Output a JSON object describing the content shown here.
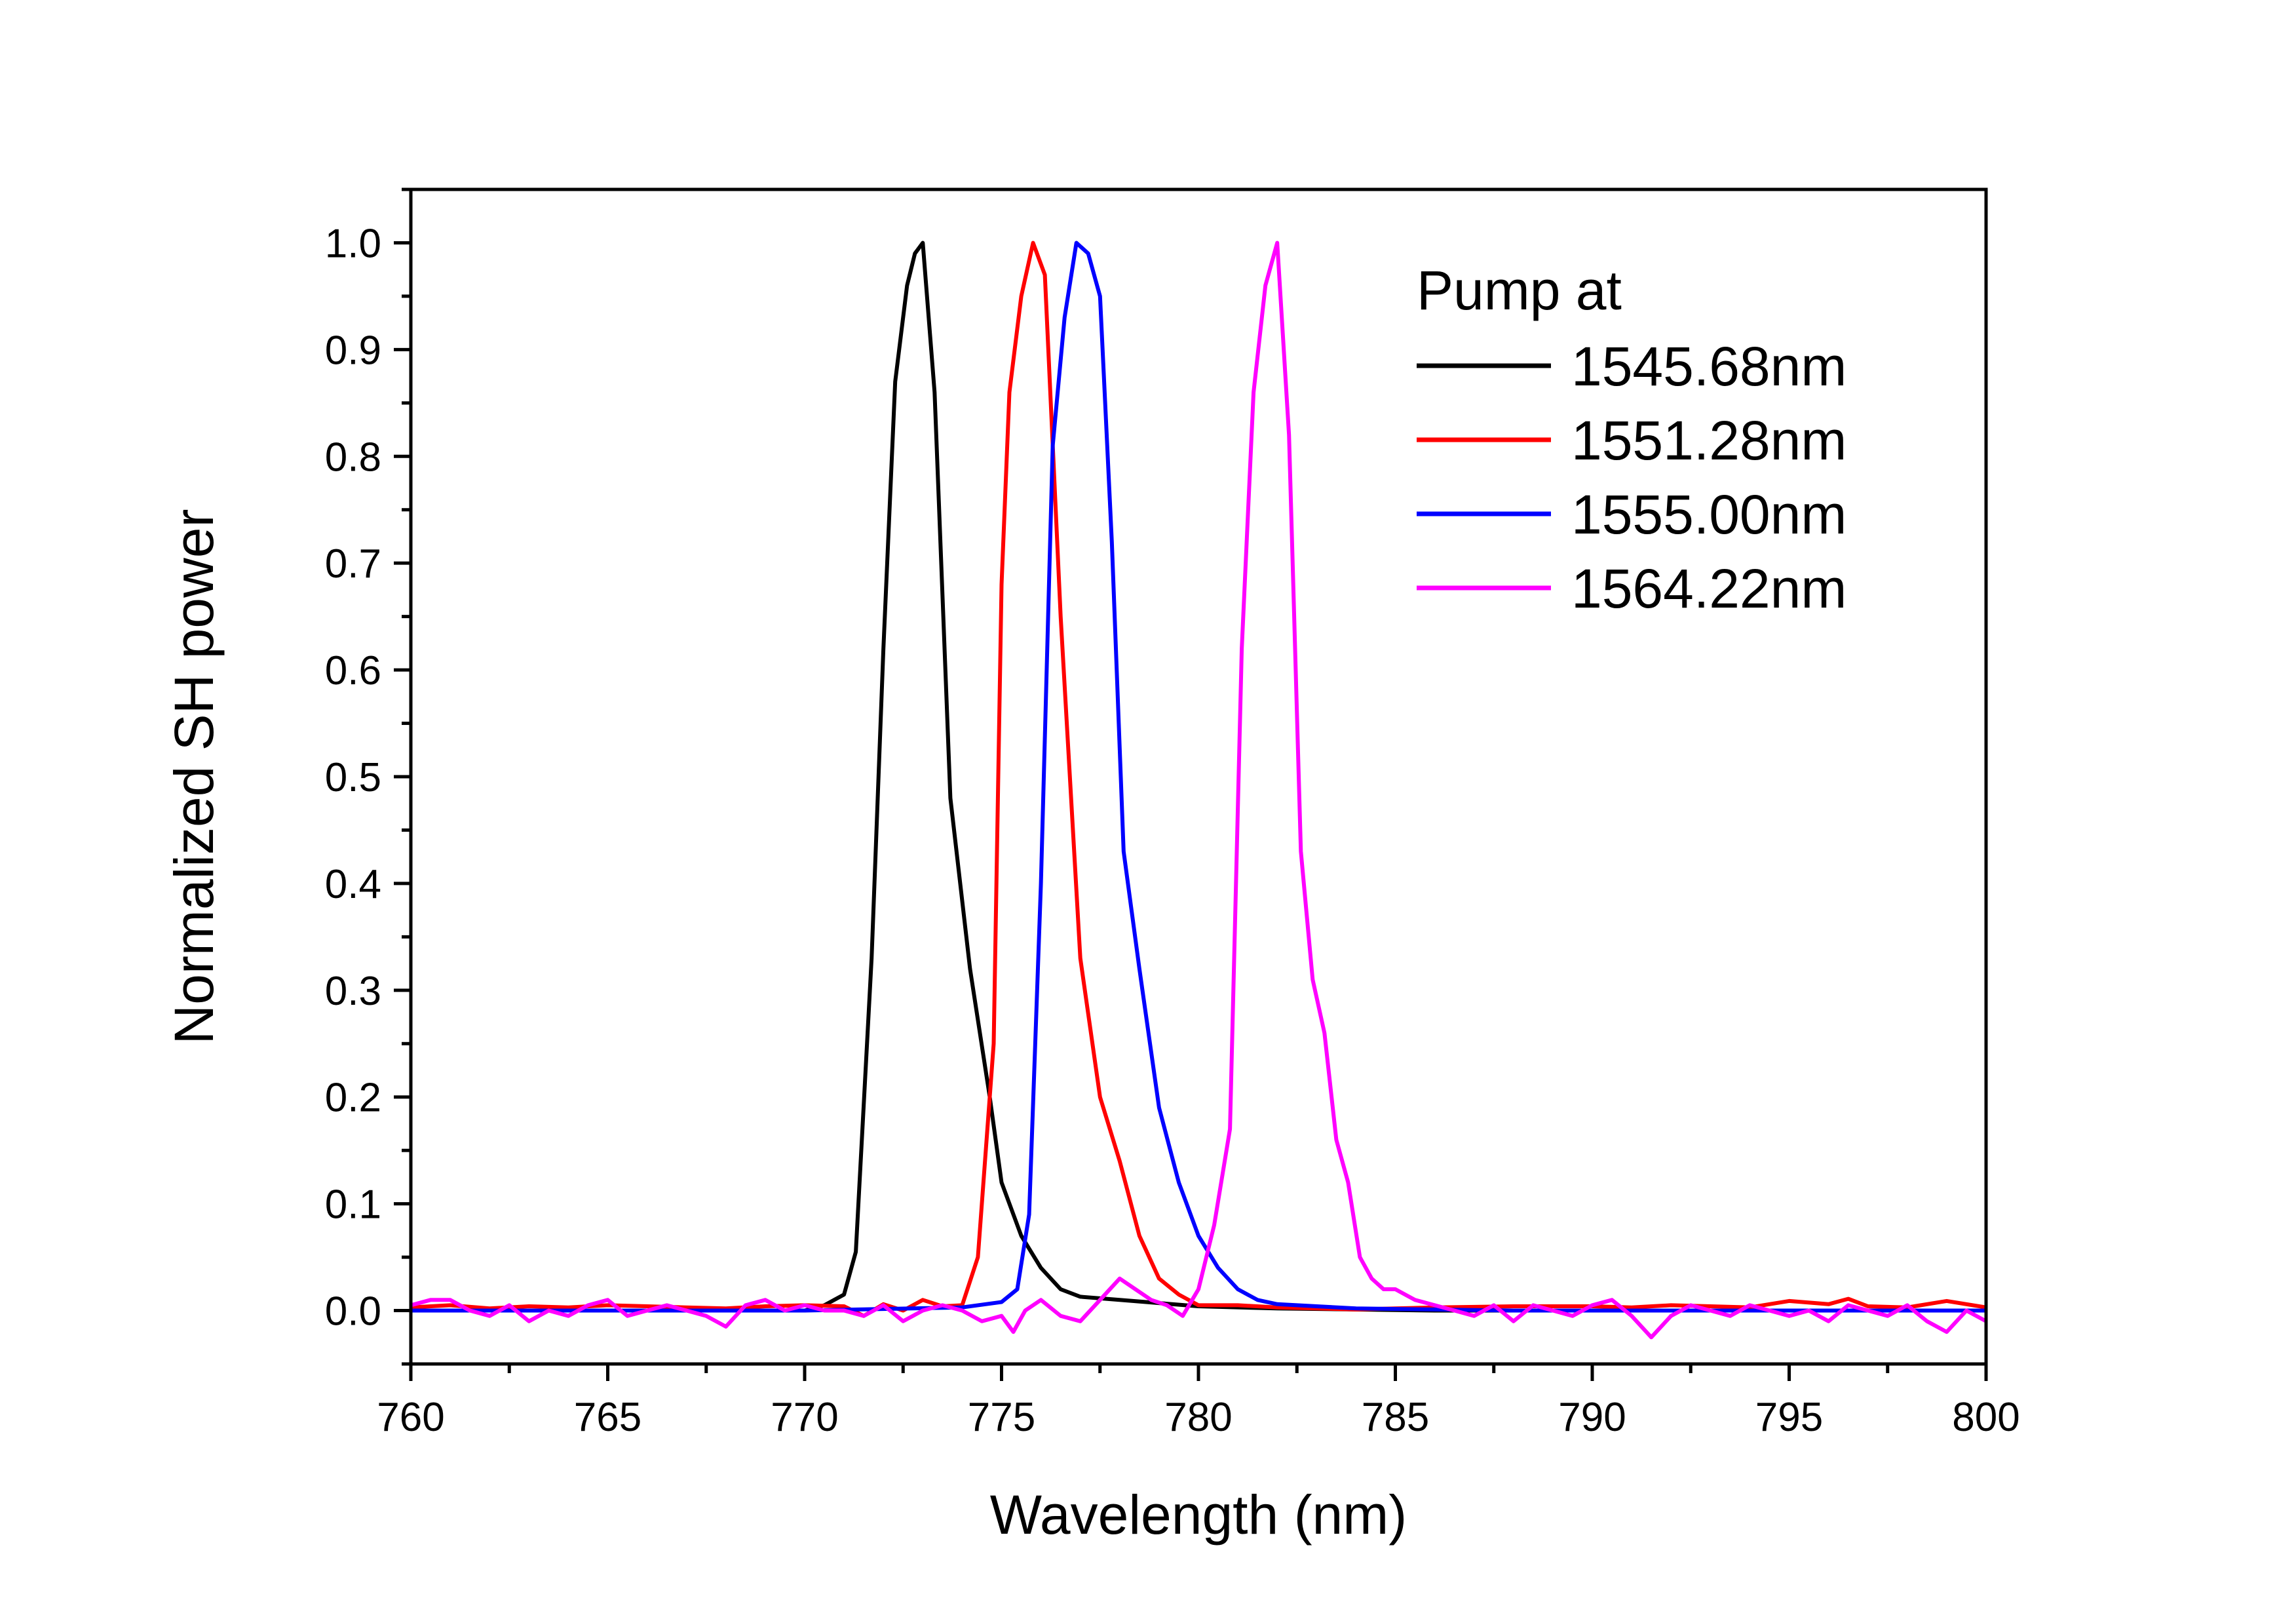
{
  "chart_data": {
    "type": "line",
    "title": "",
    "xlabel": "Wavelength (nm)",
    "ylabel": "Normalized SH power",
    "xlim": [
      760,
      800
    ],
    "ylim": [
      -0.05,
      1.05
    ],
    "xticks": [
      "760",
      "765",
      "770",
      "775",
      "780",
      "785",
      "790",
      "795",
      "800"
    ],
    "yticks": [
      "0.0",
      "0.1",
      "0.2",
      "0.3",
      "0.4",
      "0.5",
      "0.6",
      "0.7",
      "0.8",
      "0.9",
      "1.0"
    ],
    "grid": false,
    "legend": {
      "title": "Pump at",
      "placement": "top-right"
    },
    "series": [
      {
        "name": "1545.68nm",
        "color": "#000000",
        "x": [
          760,
          762,
          764,
          766,
          768,
          770,
          770.5,
          771,
          771.3,
          771.7,
          772,
          772.3,
          772.6,
          772.8,
          773,
          773.3,
          773.7,
          774.2,
          774.7,
          775,
          775.5,
          776,
          776.5,
          777,
          778,
          779,
          780,
          782,
          784,
          786,
          788,
          790,
          792,
          794,
          796,
          798,
          800
        ],
        "y": [
          0.0,
          0.0,
          0.0,
          0.0,
          0.0,
          0.0,
          0.005,
          0.015,
          0.055,
          0.33,
          0.62,
          0.87,
          0.96,
          0.99,
          1.0,
          0.86,
          0.48,
          0.32,
          0.2,
          0.12,
          0.07,
          0.04,
          0.02,
          0.013,
          0.01,
          0.007,
          0.004,
          0.002,
          0.001,
          0.0,
          0.0,
          0.0,
          0.0,
          0.0,
          0.0,
          0.0,
          0.0
        ]
      },
      {
        "name": "1551.28nm",
        "color": "#ff0000",
        "x": [
          760,
          761,
          762,
          763,
          764,
          765,
          766,
          767,
          768,
          769,
          770,
          771,
          771.5,
          772,
          772.5,
          773,
          773.5,
          774,
          774.4,
          774.8,
          775,
          775.2,
          775.5,
          775.8,
          776.1,
          776.5,
          777,
          777.5,
          778,
          778.5,
          779,
          779.5,
          780,
          781,
          782,
          783,
          784,
          785,
          786,
          788,
          790,
          791,
          792,
          793,
          794,
          795,
          796,
          796.5,
          797,
          798,
          799,
          800
        ],
        "y": [
          0.003,
          0.005,
          0.002,
          0.004,
          0.003,
          0.005,
          0.004,
          0.003,
          0.002,
          0.004,
          0.005,
          0.004,
          -0.005,
          0.006,
          0.0,
          0.01,
          0.004,
          0.005,
          0.05,
          0.25,
          0.68,
          0.86,
          0.95,
          1.0,
          0.97,
          0.65,
          0.33,
          0.2,
          0.14,
          0.07,
          0.03,
          0.015,
          0.005,
          0.005,
          0.003,
          0.002,
          0.001,
          0.002,
          0.003,
          0.004,
          0.004,
          0.003,
          0.005,
          0.004,
          0.003,
          0.009,
          0.006,
          0.011,
          0.004,
          0.003,
          0.009,
          0.003
        ]
      },
      {
        "name": "1555.00nm",
        "color": "#0000ff",
        "x": [
          760,
          765,
          770,
          774,
          775,
          775.4,
          775.7,
          776,
          776.3,
          776.6,
          776.9,
          777.2,
          777.5,
          777.8,
          778.1,
          778.5,
          779,
          779.5,
          780,
          780.5,
          781,
          781.5,
          782,
          783,
          784,
          786,
          788,
          790,
          792,
          794,
          796,
          798,
          800
        ],
        "y": [
          0.0,
          0.0,
          0.0,
          0.003,
          0.008,
          0.02,
          0.09,
          0.4,
          0.81,
          0.93,
          1.0,
          0.99,
          0.95,
          0.72,
          0.43,
          0.32,
          0.19,
          0.12,
          0.07,
          0.04,
          0.02,
          0.01,
          0.006,
          0.004,
          0.002,
          0.001,
          0.0,
          0.0,
          0.0,
          0.0,
          0.0,
          0.0,
          0.0
        ]
      },
      {
        "name": "1564.22nm",
        "color": "#ff00ff",
        "x": [
          760,
          760.5,
          761,
          761.5,
          762,
          762.5,
          763,
          763.5,
          764,
          764.5,
          765,
          765.5,
          766,
          766.5,
          767,
          767.5,
          768,
          768.5,
          769,
          769.5,
          770,
          770.5,
          771,
          771.5,
          772,
          772.5,
          773,
          773.5,
          774,
          774.5,
          775,
          775.3,
          775.6,
          776,
          776.5,
          777,
          777.5,
          778,
          778.4,
          778.8,
          779.2,
          779.6,
          780,
          780.4,
          780.8,
          781.1,
          781.4,
          781.7,
          782,
          782.3,
          782.6,
          782.9,
          783.2,
          783.5,
          783.8,
          784.1,
          784.4,
          784.7,
          785,
          785.5,
          786,
          786.5,
          787,
          787.5,
          788,
          788.5,
          789,
          789.5,
          790,
          790.5,
          791,
          791.5,
          792,
          792.5,
          793,
          793.5,
          794,
          794.5,
          795,
          795.5,
          796,
          796.5,
          797,
          797.5,
          798,
          798.5,
          799,
          799.5,
          800
        ],
        "y": [
          0.005,
          0.01,
          0.01,
          0.0,
          -0.005,
          0.005,
          -0.01,
          0.0,
          -0.005,
          0.005,
          0.01,
          -0.005,
          0.0,
          0.005,
          0.0,
          -0.005,
          -0.015,
          0.005,
          0.01,
          0.0,
          0.005,
          0.0,
          0.0,
          -0.005,
          0.005,
          -0.01,
          0.0,
          0.005,
          0.0,
          -0.01,
          -0.005,
          -0.02,
          0.0,
          0.01,
          -0.005,
          -0.01,
          0.01,
          0.03,
          0.02,
          0.01,
          0.005,
          -0.005,
          0.02,
          0.08,
          0.17,
          0.62,
          0.86,
          0.96,
          1.0,
          0.82,
          0.43,
          0.31,
          0.26,
          0.16,
          0.12,
          0.05,
          0.03,
          0.02,
          0.02,
          0.01,
          0.005,
          0.0,
          -0.005,
          0.005,
          -0.01,
          0.005,
          0.0,
          -0.005,
          0.005,
          0.01,
          -0.005,
          -0.025,
          -0.005,
          0.005,
          0.0,
          -0.005,
          0.005,
          0.0,
          -0.005,
          0.0,
          -0.01,
          0.005,
          0.0,
          -0.005,
          0.005,
          -0.01,
          -0.02,
          0.0,
          -0.01
        ]
      }
    ]
  }
}
